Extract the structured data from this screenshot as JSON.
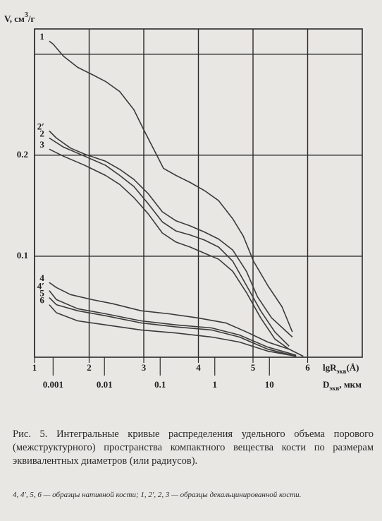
{
  "chart_data": {
    "type": "line",
    "ylabel": "V, см",
    "ylabel_sup": "3",
    "ylabel_unit": "/г",
    "xlabel": "lgR",
    "xlabel_sub": "экв",
    "xlabel_unit": "(Å)",
    "x2label": "D",
    "x2label_sub": "экв",
    "x2label_unit": ", мкм",
    "xlim": [
      1,
      7
    ],
    "ylim": [
      0,
      0.325
    ],
    "xticks": [
      1,
      2,
      3,
      4,
      5,
      6
    ],
    "yticks": [
      0.1,
      0.2,
      {
        "value": 0.3,
        "label": null
      }
    ],
    "x2ticks": [
      {
        "value": 1.34,
        "label": "0.001"
      },
      {
        "value": 2.28,
        "label": "0.01"
      },
      {
        "value": 3.3,
        "label": "0.1"
      },
      {
        "value": 4.3,
        "label": "1"
      },
      {
        "value": 5.3,
        "label": "10"
      }
    ],
    "grid": true,
    "color": "#3a3a3a",
    "series": [
      {
        "name": "1",
        "x": [
          1.27,
          1.34,
          1.53,
          1.79,
          2.05,
          2.3,
          2.56,
          2.82,
          3.01,
          3.21,
          3.36,
          3.59,
          3.85,
          4.11,
          4.37,
          4.63,
          4.82,
          5.01,
          5.27,
          5.53,
          5.72
        ],
        "values": [
          0.313,
          0.31,
          0.298,
          0.287,
          0.28,
          0.273,
          0.263,
          0.245,
          0.224,
          0.203,
          0.187,
          0.18,
          0.173,
          0.165,
          0.155,
          0.137,
          0.12,
          0.095,
          0.071,
          0.05,
          0.025
        ]
      },
      {
        "name": "2′",
        "x": [
          1.27,
          1.4,
          1.66,
          1.92,
          2.3,
          2.56,
          2.82,
          3.08,
          3.34,
          3.59,
          3.85,
          4.11,
          4.37,
          4.63,
          4.88,
          5.08,
          5.34,
          5.72
        ],
        "values": [
          0.224,
          0.217,
          0.207,
          0.201,
          0.194,
          0.186,
          0.176,
          0.162,
          0.144,
          0.135,
          0.13,
          0.124,
          0.117,
          0.106,
          0.085,
          0.06,
          0.039,
          0.02
        ]
      },
      {
        "name": "2",
        "x": [
          1.27,
          1.53,
          1.92,
          2.3,
          2.56,
          2.82,
          3.08,
          3.34,
          3.59,
          3.85,
          4.11,
          4.37,
          4.63,
          4.88,
          5.14,
          5.4,
          5.66
        ],
        "values": [
          0.217,
          0.208,
          0.199,
          0.19,
          0.18,
          0.169,
          0.152,
          0.134,
          0.125,
          0.121,
          0.116,
          0.109,
          0.095,
          0.071,
          0.046,
          0.025,
          0.011
        ]
      },
      {
        "name": "3",
        "x": [
          1.27,
          1.53,
          1.92,
          2.3,
          2.56,
          2.82,
          3.08,
          3.34,
          3.59,
          3.85,
          4.11,
          4.37,
          4.63,
          4.88,
          5.14,
          5.4,
          5.66
        ],
        "values": [
          0.206,
          0.199,
          0.19,
          0.18,
          0.171,
          0.158,
          0.142,
          0.123,
          0.114,
          0.109,
          0.103,
          0.097,
          0.085,
          0.064,
          0.039,
          0.018,
          0.008
        ]
      },
      {
        "name": "4",
        "x": [
          1.27,
          1.4,
          1.66,
          2.05,
          2.43,
          2.95,
          3.46,
          3.98,
          4.5,
          4.88,
          5.27,
          5.66,
          5.92
        ],
        "values": [
          0.074,
          0.069,
          0.062,
          0.057,
          0.053,
          0.046,
          0.043,
          0.039,
          0.034,
          0.025,
          0.015,
          0.008,
          0.001
        ]
      },
      {
        "name": "4′",
        "x": [
          1.27,
          1.4,
          1.79,
          2.3,
          2.95,
          3.59,
          4.24,
          4.75,
          5.27,
          5.79
        ],
        "values": [
          0.066,
          0.057,
          0.048,
          0.043,
          0.036,
          0.032,
          0.029,
          0.022,
          0.01,
          0.002
        ]
      },
      {
        "name": "5",
        "x": [
          1.27,
          1.4,
          1.79,
          2.3,
          2.95,
          3.59,
          4.24,
          4.75,
          5.27,
          5.79
        ],
        "values": [
          0.059,
          0.052,
          0.046,
          0.041,
          0.034,
          0.03,
          0.027,
          0.02,
          0.008,
          0.001
        ]
      },
      {
        "name": "6",
        "x": [
          1.27,
          1.4,
          1.79,
          2.3,
          2.95,
          3.59,
          4.24,
          4.75,
          5.27,
          5.79
        ],
        "values": [
          0.052,
          0.044,
          0.036,
          0.032,
          0.027,
          0.024,
          0.02,
          0.015,
          0.006,
          0.001
        ]
      }
    ]
  },
  "caption": "Рис. 5. Интегральные кривые распределения удельного объема порового (межструктурного) пространства компактного вещества кости по размерам эквивалентных диаметров (или радиусов).",
  "note": "4, 4′, 5, 6 — образцы нативной кости; 1, 2′, 2, 3 — образцы декальцинированной кости."
}
